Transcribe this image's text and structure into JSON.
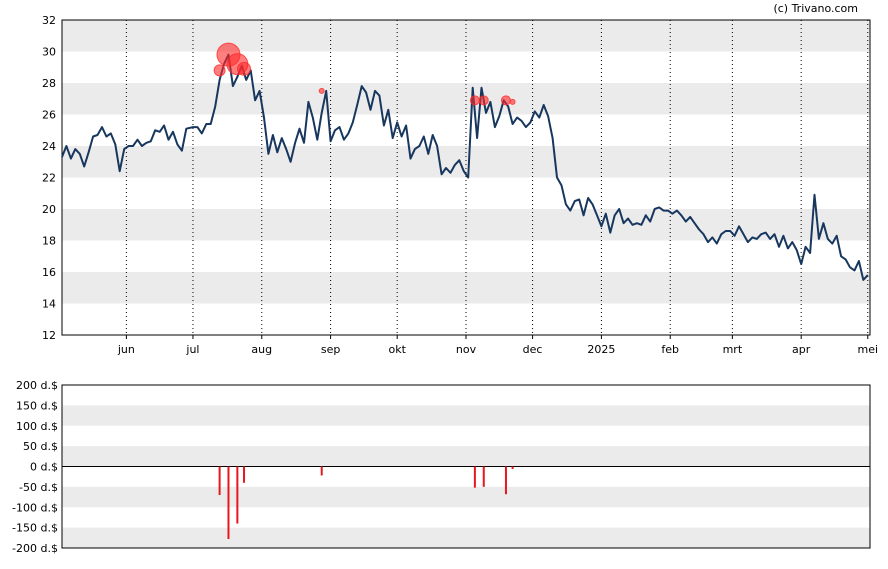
{
  "copyright": "(c) Trivano.com",
  "chart_data": [
    {
      "type": "line",
      "ylim": [
        12,
        32
      ],
      "yticks": [
        12,
        14,
        16,
        18,
        20,
        22,
        24,
        26,
        28,
        30,
        32
      ],
      "xlim": [
        "2024-05-03",
        "2025-05-02"
      ],
      "month_ticks": [
        {
          "date": "2024-06-01",
          "label": "jun"
        },
        {
          "date": "2024-07-01",
          "label": "jul"
        },
        {
          "date": "2024-08-01",
          "label": "aug"
        },
        {
          "date": "2024-09-01",
          "label": "sep"
        },
        {
          "date": "2024-10-01",
          "label": "okt"
        },
        {
          "date": "2024-11-01",
          "label": "nov"
        },
        {
          "date": "2024-12-01",
          "label": "dec"
        },
        {
          "date": "2025-01-01",
          "label": "2025"
        },
        {
          "date": "2025-02-01",
          "label": "feb"
        },
        {
          "date": "2025-03-01",
          "label": "mrt"
        },
        {
          "date": "2025-04-01",
          "label": "apr"
        },
        {
          "date": "2025-05-01",
          "label": "mei"
        }
      ],
      "grid": true,
      "line_color": "#17375e",
      "series": [
        {
          "values": [
            [
              "2024-05-03",
              23.3
            ],
            [
              "2024-05-05",
              24.0
            ],
            [
              "2024-05-07",
              23.2
            ],
            [
              "2024-05-09",
              23.8
            ],
            [
              "2024-05-11",
              23.5
            ],
            [
              "2024-05-13",
              22.7
            ],
            [
              "2024-05-15",
              23.6
            ],
            [
              "2024-05-17",
              24.6
            ],
            [
              "2024-05-19",
              24.7
            ],
            [
              "2024-05-21",
              25.2
            ],
            [
              "2024-05-23",
              24.6
            ],
            [
              "2024-05-25",
              24.8
            ],
            [
              "2024-05-27",
              24.1
            ],
            [
              "2024-05-29",
              22.4
            ],
            [
              "2024-05-31",
              23.8
            ],
            [
              "2024-06-02",
              24.0
            ],
            [
              "2024-06-04",
              24.0
            ],
            [
              "2024-06-06",
              24.4
            ],
            [
              "2024-06-08",
              24.0
            ],
            [
              "2024-06-10",
              24.2
            ],
            [
              "2024-06-12",
              24.3
            ],
            [
              "2024-06-14",
              25.0
            ],
            [
              "2024-06-16",
              24.9
            ],
            [
              "2024-06-18",
              25.3
            ],
            [
              "2024-06-20",
              24.4
            ],
            [
              "2024-06-22",
              24.9
            ],
            [
              "2024-06-24",
              24.1
            ],
            [
              "2024-06-26",
              23.7
            ],
            [
              "2024-06-28",
              25.1
            ],
            [
              "2024-07-01",
              25.2
            ],
            [
              "2024-07-03",
              25.2
            ],
            [
              "2024-07-05",
              24.8
            ],
            [
              "2024-07-07",
              25.4
            ],
            [
              "2024-07-09",
              25.4
            ],
            [
              "2024-07-11",
              26.5
            ],
            [
              "2024-07-13",
              28.2
            ],
            [
              "2024-07-15",
              29.2
            ],
            [
              "2024-07-17",
              29.8
            ],
            [
              "2024-07-19",
              27.8
            ],
            [
              "2024-07-21",
              28.4
            ],
            [
              "2024-07-23",
              29.1
            ],
            [
              "2024-07-25",
              28.2
            ],
            [
              "2024-07-27",
              28.8
            ],
            [
              "2024-07-29",
              26.9
            ],
            [
              "2024-07-31",
              27.5
            ],
            [
              "2024-08-02",
              25.8
            ],
            [
              "2024-08-04",
              23.5
            ],
            [
              "2024-08-06",
              24.7
            ],
            [
              "2024-08-08",
              23.6
            ],
            [
              "2024-08-10",
              24.5
            ],
            [
              "2024-08-12",
              23.8
            ],
            [
              "2024-08-14",
              23.0
            ],
            [
              "2024-08-16",
              24.2
            ],
            [
              "2024-08-18",
              25.1
            ],
            [
              "2024-08-20",
              24.2
            ],
            [
              "2024-08-22",
              26.8
            ],
            [
              "2024-08-24",
              25.8
            ],
            [
              "2024-08-26",
              24.4
            ],
            [
              "2024-08-28",
              26.1
            ],
            [
              "2024-08-30",
              27.5
            ],
            [
              "2024-09-01",
              24.3
            ],
            [
              "2024-09-03",
              25.0
            ],
            [
              "2024-09-05",
              25.2
            ],
            [
              "2024-09-07",
              24.4
            ],
            [
              "2024-09-09",
              24.8
            ],
            [
              "2024-09-11",
              25.5
            ],
            [
              "2024-09-13",
              26.6
            ],
            [
              "2024-09-15",
              27.8
            ],
            [
              "2024-09-17",
              27.4
            ],
            [
              "2024-09-19",
              26.3
            ],
            [
              "2024-09-21",
              27.5
            ],
            [
              "2024-09-23",
              27.2
            ],
            [
              "2024-09-25",
              25.3
            ],
            [
              "2024-09-27",
              26.3
            ],
            [
              "2024-09-29",
              24.5
            ],
            [
              "2024-10-01",
              25.5
            ],
            [
              "2024-10-03",
              24.6
            ],
            [
              "2024-10-05",
              25.3
            ],
            [
              "2024-10-07",
              23.2
            ],
            [
              "2024-10-09",
              23.8
            ],
            [
              "2024-10-11",
              24.0
            ],
            [
              "2024-10-13",
              24.6
            ],
            [
              "2024-10-15",
              23.5
            ],
            [
              "2024-10-17",
              24.7
            ],
            [
              "2024-10-19",
              24.0
            ],
            [
              "2024-10-21",
              22.2
            ],
            [
              "2024-10-23",
              22.6
            ],
            [
              "2024-10-25",
              22.3
            ],
            [
              "2024-10-27",
              22.8
            ],
            [
              "2024-10-29",
              23.1
            ],
            [
              "2024-10-31",
              22.4
            ],
            [
              "2024-11-02",
              22.0
            ],
            [
              "2024-11-04",
              27.7
            ],
            [
              "2024-11-06",
              24.5
            ],
            [
              "2024-11-08",
              27.7
            ],
            [
              "2024-11-10",
              26.1
            ],
            [
              "2024-11-12",
              26.8
            ],
            [
              "2024-11-14",
              25.2
            ],
            [
              "2024-11-16",
              25.9
            ],
            [
              "2024-11-18",
              26.9
            ],
            [
              "2024-11-20",
              26.5
            ],
            [
              "2024-11-22",
              25.4
            ],
            [
              "2024-11-24",
              25.8
            ],
            [
              "2024-11-26",
              25.6
            ],
            [
              "2024-11-28",
              25.2
            ],
            [
              "2024-11-30",
              25.5
            ],
            [
              "2024-12-02",
              26.2
            ],
            [
              "2024-12-04",
              25.8
            ],
            [
              "2024-12-06",
              26.6
            ],
            [
              "2024-12-08",
              25.9
            ],
            [
              "2024-12-10",
              24.5
            ],
            [
              "2024-12-12",
              22.0
            ],
            [
              "2024-12-14",
              21.5
            ],
            [
              "2024-12-16",
              20.3
            ],
            [
              "2024-12-18",
              19.9
            ],
            [
              "2024-12-20",
              20.5
            ],
            [
              "2024-12-22",
              20.6
            ],
            [
              "2024-12-24",
              19.6
            ],
            [
              "2024-12-26",
              20.7
            ],
            [
              "2024-12-28",
              20.3
            ],
            [
              "2024-12-30",
              19.6
            ],
            [
              "2025-01-01",
              18.9
            ],
            [
              "2025-01-03",
              19.7
            ],
            [
              "2025-01-05",
              18.5
            ],
            [
              "2025-01-07",
              19.6
            ],
            [
              "2025-01-09",
              20.0
            ],
            [
              "2025-01-11",
              19.1
            ],
            [
              "2025-01-13",
              19.4
            ],
            [
              "2025-01-15",
              19.0
            ],
            [
              "2025-01-17",
              19.1
            ],
            [
              "2025-01-19",
              19.0
            ],
            [
              "2025-01-21",
              19.6
            ],
            [
              "2025-01-23",
              19.2
            ],
            [
              "2025-01-25",
              20.0
            ],
            [
              "2025-01-27",
              20.1
            ],
            [
              "2025-01-29",
              19.9
            ],
            [
              "2025-01-31",
              19.9
            ],
            [
              "2025-02-02",
              19.7
            ],
            [
              "2025-02-04",
              19.9
            ],
            [
              "2025-02-06",
              19.6
            ],
            [
              "2025-02-08",
              19.2
            ],
            [
              "2025-02-10",
              19.5
            ],
            [
              "2025-02-12",
              19.1
            ],
            [
              "2025-02-14",
              18.7
            ],
            [
              "2025-02-16",
              18.4
            ],
            [
              "2025-02-18",
              17.9
            ],
            [
              "2025-02-20",
              18.2
            ],
            [
              "2025-02-22",
              17.8
            ],
            [
              "2025-02-24",
              18.4
            ],
            [
              "2025-02-26",
              18.6
            ],
            [
              "2025-02-28",
              18.6
            ],
            [
              "2025-03-02",
              18.3
            ],
            [
              "2025-03-04",
              18.9
            ],
            [
              "2025-03-06",
              18.4
            ],
            [
              "2025-03-08",
              17.9
            ],
            [
              "2025-03-10",
              18.2
            ],
            [
              "2025-03-12",
              18.1
            ],
            [
              "2025-03-14",
              18.4
            ],
            [
              "2025-03-16",
              18.5
            ],
            [
              "2025-03-18",
              18.1
            ],
            [
              "2025-03-20",
              18.4
            ],
            [
              "2025-03-22",
              17.6
            ],
            [
              "2025-03-24",
              18.3
            ],
            [
              "2025-03-26",
              17.5
            ],
            [
              "2025-03-28",
              17.9
            ],
            [
              "2025-03-30",
              17.4
            ],
            [
              "2025-04-01",
              16.5
            ],
            [
              "2025-04-03",
              17.6
            ],
            [
              "2025-04-05",
              17.2
            ],
            [
              "2025-04-07",
              20.9
            ],
            [
              "2025-04-09",
              18.1
            ],
            [
              "2025-04-11",
              19.1
            ],
            [
              "2025-04-13",
              18.1
            ],
            [
              "2025-04-15",
              17.8
            ],
            [
              "2025-04-17",
              18.3
            ],
            [
              "2025-04-19",
              17.0
            ],
            [
              "2025-04-21",
              16.8
            ],
            [
              "2025-04-23",
              16.3
            ],
            [
              "2025-04-25",
              16.1
            ],
            [
              "2025-04-27",
              16.7
            ],
            [
              "2025-04-29",
              15.5
            ],
            [
              "2025-05-01",
              15.8
            ]
          ]
        }
      ],
      "markers": [
        {
          "date": "2024-07-13",
          "y": 28.8,
          "size": 4
        },
        {
          "date": "2024-07-17",
          "y": 29.8,
          "size": 10
        },
        {
          "date": "2024-07-21",
          "y": 29.2,
          "size": 9
        },
        {
          "date": "2024-07-24",
          "y": 28.9,
          "size": 5
        },
        {
          "date": "2024-08-28",
          "y": 27.5,
          "size": 1
        },
        {
          "date": "2024-11-05",
          "y": 26.9,
          "size": 3
        },
        {
          "date": "2024-11-09",
          "y": 26.9,
          "size": 3
        },
        {
          "date": "2024-11-19",
          "y": 26.9,
          "size": 3
        },
        {
          "date": "2024-11-22",
          "y": 26.8,
          "size": 1
        }
      ],
      "marker_color": "#ff2a2a"
    },
    {
      "type": "bar",
      "ylim": [
        -200,
        200
      ],
      "yticks": [
        200,
        150,
        100,
        50,
        0,
        -50,
        -100,
        -150,
        -200
      ],
      "ytick_labels": [
        "200 d.$",
        "150 d.$",
        "100 d.$",
        "50 d.$",
        "0 d.$",
        "-50 d.$",
        "-100 d.$",
        "-150 d.$",
        "-200 d.$"
      ],
      "grid": true,
      "bar_color": "#e8171f",
      "bars": [
        {
          "date": "2024-07-13",
          "value": -70
        },
        {
          "date": "2024-07-17",
          "value": -178
        },
        {
          "date": "2024-07-21",
          "value": -140
        },
        {
          "date": "2024-07-24",
          "value": -40
        },
        {
          "date": "2024-08-28",
          "value": -22
        },
        {
          "date": "2024-11-05",
          "value": -52
        },
        {
          "date": "2024-11-09",
          "value": -50
        },
        {
          "date": "2024-11-19",
          "value": -68
        },
        {
          "date": "2024-11-22",
          "value": -6
        }
      ]
    }
  ]
}
